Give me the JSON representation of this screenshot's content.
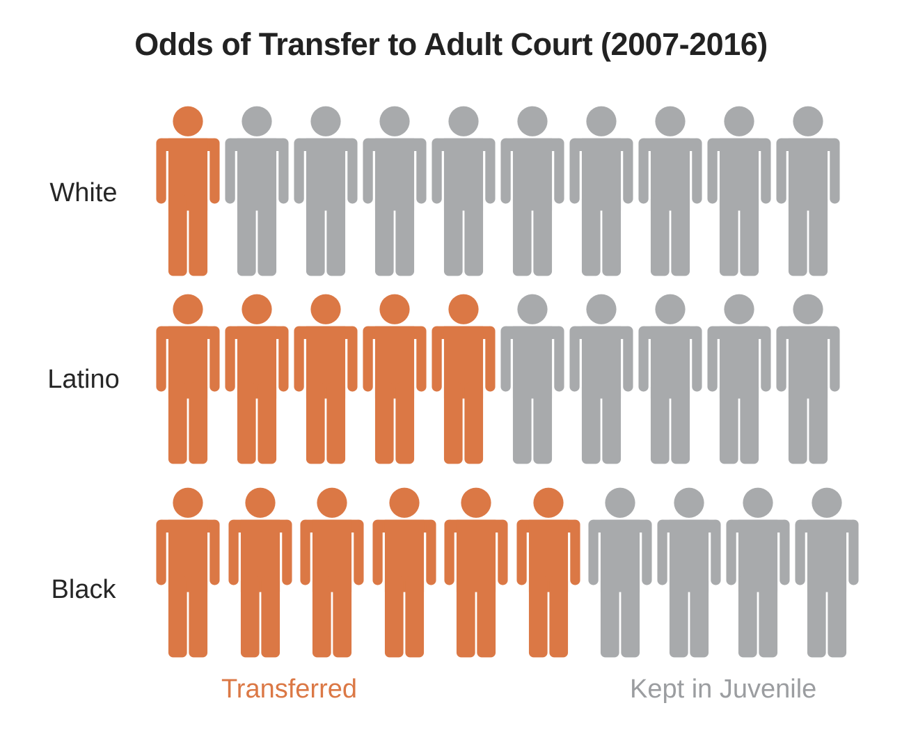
{
  "title": "Odds of Transfer to Adult Court (2007-2016)",
  "rows": [
    {
      "label": "White",
      "transferred": 1,
      "kept": 9,
      "total": 10
    },
    {
      "label": "Latino",
      "transferred": 5,
      "kept": 5,
      "total": 10
    },
    {
      "label": "Black",
      "transferred": 6,
      "kept": 4,
      "total": 10
    }
  ],
  "legend": {
    "transferred_label": "Transferred",
    "kept_label": "Kept in Juvenile"
  },
  "colors": {
    "transferred": "#DB7845",
    "kept": "#A8AAAC",
    "title_text": "#222222",
    "row_label_text": "#262626",
    "legend_transferred_text": "#DB7845",
    "legend_kept_text": "#9B9DA0",
    "background": "#FFFFFF"
  },
  "icons": {
    "person": "person-icon"
  },
  "chart_data": {
    "type": "bar",
    "variant": "pictogram",
    "title": "Odds of Transfer to Adult Court (2007-2016)",
    "categories": [
      "White",
      "Latino",
      "Black"
    ],
    "series": [
      {
        "name": "Transferred",
        "values": [
          1,
          5,
          6
        ],
        "color": "#DB7845"
      },
      {
        "name": "Kept in Juvenile",
        "values": [
          9,
          5,
          4
        ],
        "color": "#A8AAAC"
      }
    ],
    "units_per_category": 10,
    "unit_meaning": "each person icon = 1 out of 10",
    "legend_position": "bottom",
    "orientation": "horizontal rows of person icons",
    "grid": false
  }
}
